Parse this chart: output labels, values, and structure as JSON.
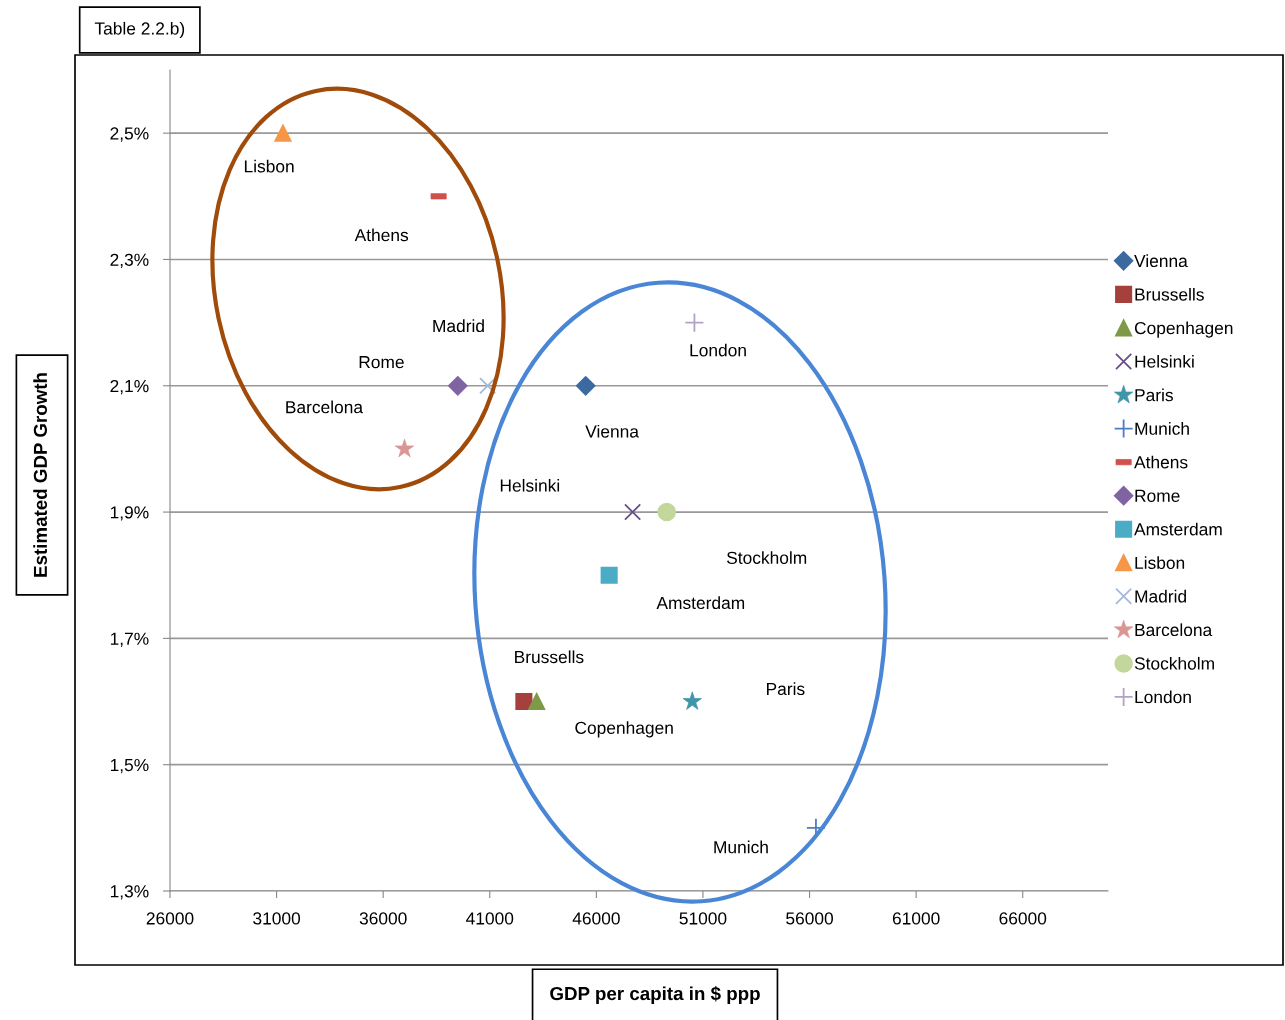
{
  "chart_data": {
    "type": "scatter",
    "title": "Table 2.2.b)",
    "xlabel": "GDP per capita in $ ppp",
    "ylabel": "Estimated GDP Growth",
    "xlim": [
      26000,
      70000
    ],
    "xticks": [
      26000,
      31000,
      36000,
      41000,
      46000,
      51000,
      56000,
      61000,
      66000
    ],
    "ylim": [
      1.3,
      2.6
    ],
    "yticks": [
      {
        "value": 1.3,
        "label": "1,3%"
      },
      {
        "value": 1.5,
        "label": "1,5%"
      },
      {
        "value": 1.7,
        "label": "1,7%"
      },
      {
        "value": 1.9,
        "label": "1,9%"
      },
      {
        "value": 2.1,
        "label": "2,1%"
      },
      {
        "value": 2.3,
        "label": "2,3%"
      },
      {
        "value": 2.5,
        "label": "2,5%"
      }
    ],
    "grid": "y",
    "legend": "right",
    "series": [
      {
        "name": "Vienna",
        "color": "#3c6aa0",
        "marker": "diamond",
        "x": [
          45500
        ],
        "values": [
          2.1
        ]
      },
      {
        "name": "Brussells",
        "color": "#a5403d",
        "marker": "square",
        "x": [
          42600
        ],
        "values": [
          1.6
        ]
      },
      {
        "name": "Copenhagen",
        "color": "#7e9a48",
        "marker": "triangle",
        "x": [
          43200
        ],
        "values": [
          1.6
        ]
      },
      {
        "name": "Helsinki",
        "color": "#6a4e8c",
        "marker": "cross",
        "x": [
          47700
        ],
        "values": [
          1.9
        ]
      },
      {
        "name": "Paris",
        "color": "#3f96a9",
        "marker": "star",
        "x": [
          50500
        ],
        "values": [
          1.6
        ]
      },
      {
        "name": "Munich",
        "color": "#4a7fc4",
        "marker": "plus",
        "x": [
          56300
        ],
        "values": [
          1.4
        ]
      },
      {
        "name": "Athens",
        "color": "#d0504d",
        "x": [
          38600
        ],
        "values": [
          2.4
        ]
      },
      {
        "name": "Rome",
        "color": "#8064a2",
        "marker": "diamond",
        "x": [
          39500
        ],
        "values": [
          2.1
        ]
      },
      {
        "name": "Amsterdam",
        "color": "#4bacc6",
        "marker": "square",
        "x": [
          46600
        ],
        "values": [
          1.8
        ]
      },
      {
        "name": "Lisbon",
        "color": "#f79646",
        "marker": "triangle",
        "x": [
          31300
        ],
        "values": [
          2.5
        ]
      },
      {
        "name": "Madrid",
        "color": "#a5b9db",
        "marker": "cross",
        "x": [
          40900
        ],
        "values": [
          2.1
        ]
      },
      {
        "name": "Barcelona",
        "color": "#d99694",
        "marker": "star",
        "x": [
          37000
        ],
        "values": [
          2.0
        ]
      },
      {
        "name": "Stockholm",
        "color": "#c3d69b",
        "marker": "circle",
        "x": [
          49300
        ],
        "values": [
          1.9
        ]
      },
      {
        "name": "London",
        "color": "#b3a2c7",
        "marker": "plus",
        "x": [
          50600
        ],
        "values": [
          2.2
        ]
      }
    ]
  }
}
